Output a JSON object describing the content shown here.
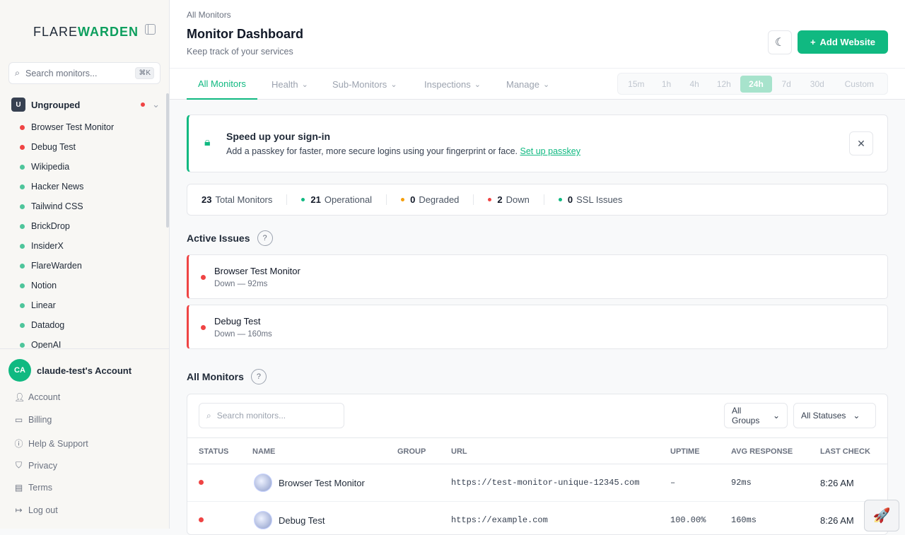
{
  "brand": {
    "part1": "FLARE",
    "part2": "WARDEN"
  },
  "sidebar": {
    "search_placeholder": "Search monitors...",
    "shortcut": "⌘K",
    "group": {
      "badge": "U",
      "name": "Ungrouped"
    },
    "monitors": [
      {
        "name": "Browser Test Monitor",
        "status": "down"
      },
      {
        "name": "Debug Test",
        "status": "down"
      },
      {
        "name": "Wikipedia",
        "status": "up"
      },
      {
        "name": "Hacker News",
        "status": "up"
      },
      {
        "name": "Tailwind CSS",
        "status": "up"
      },
      {
        "name": "BrickDrop",
        "status": "up"
      },
      {
        "name": "InsiderX",
        "status": "up"
      },
      {
        "name": "FlareWarden",
        "status": "up"
      },
      {
        "name": "Notion",
        "status": "up"
      },
      {
        "name": "Linear",
        "status": "up"
      },
      {
        "name": "Datadog",
        "status": "up"
      },
      {
        "name": "OpenAI",
        "status": "up"
      }
    ],
    "account": {
      "initials": "CA",
      "name": "claude-test's Account"
    },
    "nav": [
      "Account",
      "Billing",
      "Help & Support",
      "Privacy",
      "Terms",
      "Log out"
    ]
  },
  "header": {
    "breadcrumb": "All Monitors",
    "title": "Monitor Dashboard",
    "subtitle": "Keep track of your services",
    "add_label": "Add Website"
  },
  "tabs": [
    "All Monitors",
    "Health",
    "Sub-Monitors",
    "Inspections",
    "Manage"
  ],
  "ranges": [
    "15m",
    "1h",
    "4h",
    "12h",
    "24h",
    "7d",
    "30d",
    "Custom"
  ],
  "active_range": "24h",
  "banner": {
    "title": "Speed up your sign-in",
    "text": "Add a passkey for faster, more secure logins using your fingerprint or face.",
    "link": "Set up passkey"
  },
  "stats": [
    {
      "value": "23",
      "label": "Total Monitors",
      "color": ""
    },
    {
      "value": "21",
      "label": "Operational",
      "color": "#10b981"
    },
    {
      "value": "0",
      "label": "Degraded",
      "color": "#f59e0b"
    },
    {
      "value": "2",
      "label": "Down",
      "color": "#ef4444"
    },
    {
      "value": "0",
      "label": "SSL Issues",
      "color": "#10b981"
    }
  ],
  "active_issues": {
    "title": "Active Issues",
    "help": "?",
    "items": [
      {
        "name": "Browser Test Monitor",
        "detail": "Down — 92ms"
      },
      {
        "name": "Debug Test",
        "detail": "Down — 160ms"
      }
    ]
  },
  "all_monitors": {
    "title": "All Monitors",
    "help": "?",
    "search_placeholder": "Search monitors...",
    "group_filter": "All Groups",
    "status_filter": "All Statuses",
    "columns": [
      "STATUS",
      "NAME",
      "GROUP",
      "URL",
      "UPTIME",
      "AVG RESPONSE",
      "LAST CHECK"
    ],
    "rows": [
      {
        "name": "Browser Test Monitor",
        "group": "",
        "url": "https://test-monitor-unique-12345.com",
        "uptime": "–",
        "avg": "92ms",
        "last": "8:26 AM"
      },
      {
        "name": "Debug Test",
        "group": "",
        "url": "https://example.com",
        "uptime": "100.00%",
        "avg": "160ms",
        "last": "8:26 AM"
      }
    ]
  },
  "colors": {
    "accent": "#10b981",
    "down": "#ef4444",
    "up": "#4fc59b"
  }
}
